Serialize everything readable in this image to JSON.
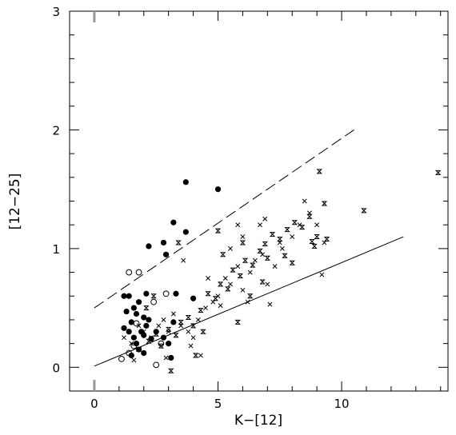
{
  "chart_data": {
    "type": "scatter",
    "title": "",
    "xlabel": "K−[12]",
    "ylabel": "[12−25]",
    "xlim": [
      -1,
      14.3
    ],
    "ylim": [
      -0.2,
      3
    ],
    "xticks": [
      "0",
      "5",
      "10"
    ],
    "yticks": [
      "0",
      "1",
      "2",
      "3"
    ],
    "grid": false,
    "legend": "none",
    "colors": {
      "ink": "#000000",
      "background": "#ffffff"
    },
    "series": [
      {
        "marker": "filled-circle",
        "points": [
          [
            1.5,
            0.1
          ],
          [
            1.8,
            0.15
          ],
          [
            2.0,
            0.12
          ],
          [
            1.4,
            0.3
          ],
          [
            1.6,
            0.25
          ],
          [
            1.9,
            0.3
          ],
          [
            2.1,
            0.35
          ],
          [
            1.2,
            0.33
          ],
          [
            1.5,
            0.38
          ],
          [
            1.7,
            0.45
          ],
          [
            2.0,
            0.42
          ],
          [
            1.3,
            0.47
          ],
          [
            1.6,
            0.5
          ],
          [
            2.2,
            0.4
          ],
          [
            1.8,
            0.55
          ],
          [
            1.4,
            0.6
          ],
          [
            2.1,
            0.62
          ],
          [
            1.2,
            0.6
          ],
          [
            2.5,
            0.3
          ],
          [
            2.8,
            0.25
          ],
          [
            3.0,
            0.2
          ],
          [
            3.2,
            0.38
          ],
          [
            3.3,
            0.62
          ],
          [
            2.9,
            0.95
          ],
          [
            2.2,
            1.02
          ],
          [
            2.8,
            1.05
          ],
          [
            3.2,
            1.22
          ],
          [
            3.7,
            1.14
          ],
          [
            3.7,
            1.56
          ],
          [
            5.0,
            1.5
          ],
          [
            4.0,
            0.58
          ],
          [
            3.1,
            0.08
          ],
          [
            2.0,
            0.27
          ],
          [
            2.3,
            0.24
          ],
          [
            1.7,
            0.2
          ]
        ]
      },
      {
        "marker": "open-circle",
        "points": [
          [
            1.1,
            0.07
          ],
          [
            1.4,
            0.12
          ],
          [
            1.6,
            0.18
          ],
          [
            1.4,
            0.8
          ],
          [
            1.8,
            0.8
          ],
          [
            2.4,
            0.55
          ],
          [
            2.9,
            0.62
          ],
          [
            2.5,
            0.02
          ],
          [
            2.7,
            0.2
          ],
          [
            1.7,
            0.37
          ]
        ]
      },
      {
        "marker": "cross",
        "points": [
          [
            1.2,
            0.25
          ],
          [
            1.5,
            0.2
          ],
          [
            1.8,
            0.35
          ],
          [
            2.0,
            0.3
          ],
          [
            2.3,
            0.25
          ],
          [
            2.6,
            0.35
          ],
          [
            2.8,
            0.4
          ],
          [
            3.0,
            0.3
          ],
          [
            3.2,
            0.45
          ],
          [
            3.5,
            0.35
          ],
          [
            3.8,
            0.3
          ],
          [
            4.0,
            0.25
          ],
          [
            4.2,
            0.4
          ],
          [
            4.5,
            0.5
          ],
          [
            4.8,
            0.55
          ],
          [
            5.0,
            0.6
          ],
          [
            5.3,
            0.75
          ],
          [
            5.5,
            0.7
          ],
          [
            5.8,
            0.85
          ],
          [
            6.0,
            0.65
          ],
          [
            6.3,
            0.8
          ],
          [
            6.5,
            0.9
          ],
          [
            6.8,
            0.95
          ],
          [
            7.0,
            0.7
          ],
          [
            7.3,
            0.85
          ],
          [
            7.6,
            1.0
          ],
          [
            8.0,
            1.1
          ],
          [
            8.3,
            1.2
          ],
          [
            8.7,
            1.3
          ],
          [
            9.0,
            1.2
          ],
          [
            9.3,
            1.05
          ],
          [
            5.5,
            1.0
          ],
          [
            6.0,
            1.1
          ],
          [
            6.7,
            1.2
          ],
          [
            7.5,
            1.05
          ],
          [
            8.5,
            1.4
          ],
          [
            9.2,
            0.78
          ],
          [
            4.3,
            0.1
          ],
          [
            2.9,
            0.08
          ],
          [
            5.8,
            1.2
          ],
          [
            6.2,
            0.55
          ],
          [
            7.1,
            0.53
          ],
          [
            3.6,
            0.9
          ],
          [
            3.9,
            0.18
          ],
          [
            1.6,
            0.06
          ],
          [
            5.1,
            0.52
          ],
          [
            4.6,
            0.75
          ],
          [
            6.9,
            1.25
          ]
        ]
      },
      {
        "marker": "hourglass",
        "points": [
          [
            1.8,
            0.15
          ],
          [
            2.2,
            0.22
          ],
          [
            2.5,
            0.28
          ],
          [
            2.7,
            0.18
          ],
          [
            3.0,
            0.32
          ],
          [
            3.3,
            0.27
          ],
          [
            3.5,
            0.38
          ],
          [
            3.8,
            0.42
          ],
          [
            4.0,
            0.35
          ],
          [
            4.3,
            0.48
          ],
          [
            4.6,
            0.62
          ],
          [
            4.9,
            0.58
          ],
          [
            5.1,
            0.7
          ],
          [
            5.4,
            0.66
          ],
          [
            5.6,
            0.82
          ],
          [
            5.9,
            0.77
          ],
          [
            6.1,
            0.9
          ],
          [
            6.4,
            0.86
          ],
          [
            6.7,
            0.98
          ],
          [
            6.9,
            1.04
          ],
          [
            7.2,
            1.12
          ],
          [
            7.5,
            1.08
          ],
          [
            7.8,
            1.16
          ],
          [
            8.1,
            1.22
          ],
          [
            8.4,
            1.18
          ],
          [
            8.7,
            1.27
          ],
          [
            9.0,
            1.1
          ],
          [
            9.3,
            1.38
          ],
          [
            9.1,
            1.65
          ],
          [
            10.9,
            1.32
          ],
          [
            13.9,
            1.64
          ],
          [
            5.0,
            1.15
          ],
          [
            6.0,
            1.05
          ],
          [
            7.0,
            0.92
          ],
          [
            8.0,
            0.88
          ],
          [
            8.8,
            1.06
          ],
          [
            9.4,
            1.08
          ],
          [
            3.1,
            -0.03
          ],
          [
            2.4,
            0.6
          ],
          [
            4.1,
            0.1
          ],
          [
            5.8,
            0.38
          ],
          [
            6.3,
            0.6
          ],
          [
            6.8,
            0.72
          ],
          [
            7.7,
            0.94
          ],
          [
            3.4,
            1.05
          ],
          [
            2.1,
            0.5
          ],
          [
            4.4,
            0.3
          ],
          [
            5.2,
            0.95
          ],
          [
            8.9,
            1.02
          ]
        ]
      }
    ],
    "lines": [
      {
        "style": "solid",
        "points": [
          [
            0,
            0.01
          ],
          [
            12.5,
            1.1
          ]
        ]
      },
      {
        "style": "dashed",
        "points": [
          [
            0,
            0.5
          ],
          [
            10.5,
            2.0
          ]
        ]
      }
    ]
  }
}
